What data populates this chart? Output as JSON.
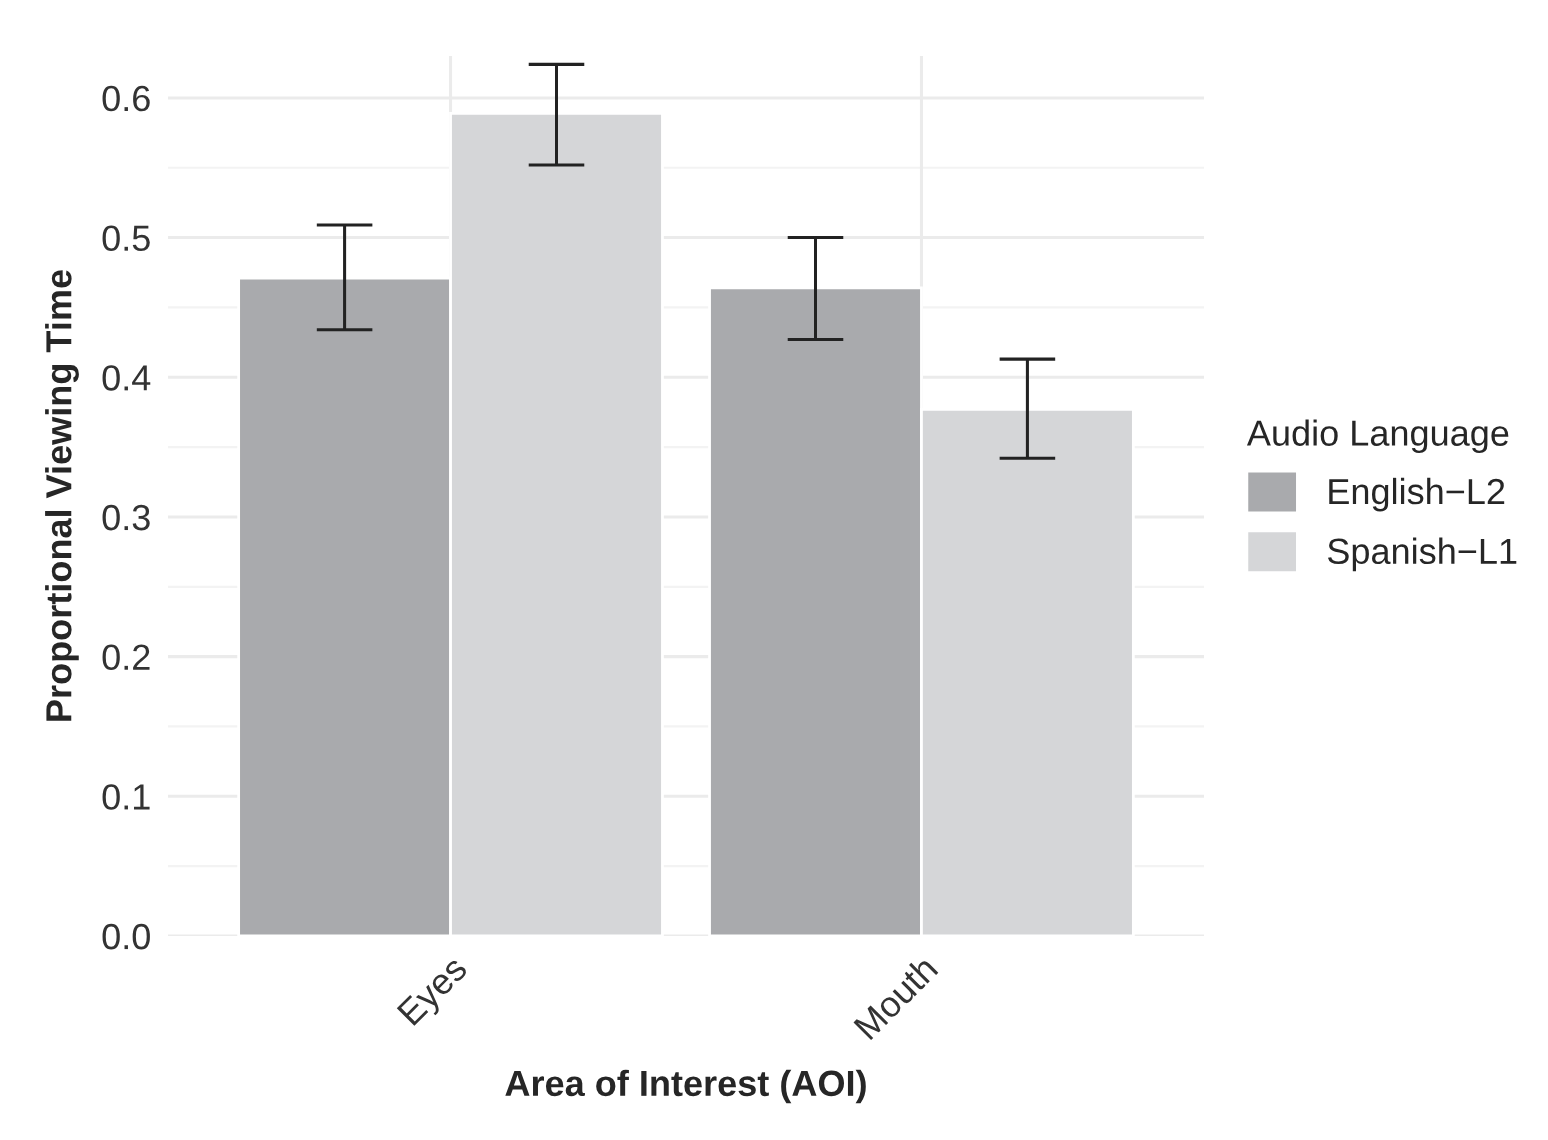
{
  "chart_data": {
    "type": "bar",
    "xlabel": "Area of Interest (AOI)",
    "ylabel": "Proportional Viewing Time",
    "legend_title": "Audio Language",
    "categories": [
      "Eyes",
      "Mouth"
    ],
    "series": [
      {
        "name": "English−L2",
        "color": "#a9aaad",
        "values": [
          0.471,
          0.464
        ],
        "errors": [
          [
            0.434,
            0.509
          ],
          [
            0.427,
            0.5
          ]
        ]
      },
      {
        "name": "Spanish−L1",
        "color": "#d5d6d8",
        "values": [
          0.589,
          0.377
        ],
        "errors": [
          [
            0.552,
            0.624
          ],
          [
            0.342,
            0.413
          ]
        ]
      }
    ],
    "ylim": [
      0,
      0.63
    ],
    "yticks": [
      {
        "value": 0,
        "label": "0.0"
      },
      0.1,
      0.2,
      0.3,
      0.4,
      0.5,
      0.6
    ],
    "grid": true,
    "legend": "right"
  }
}
